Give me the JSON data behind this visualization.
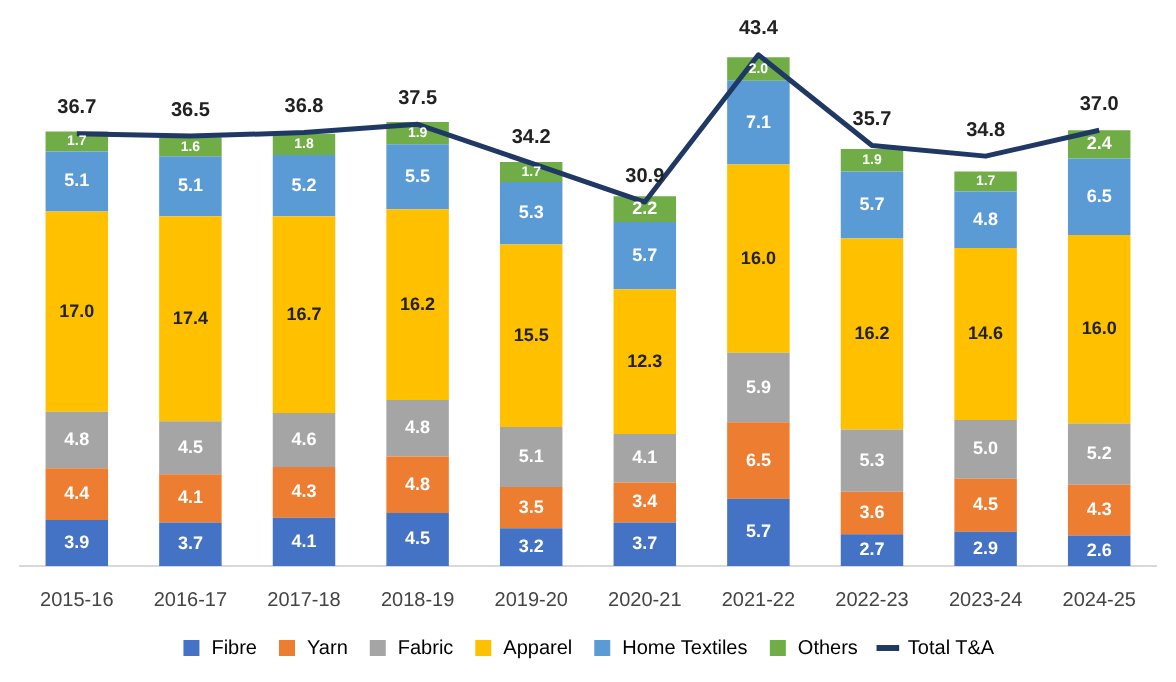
{
  "chart_data": {
    "type": "bar",
    "stacked": true,
    "categories": [
      "2015-16",
      "2016-17",
      "2017-18",
      "2018-19",
      "2019-20",
      "2020-21",
      "2021-22",
      "2022-23",
      "2023-24",
      "2024-25"
    ],
    "series": [
      {
        "name": "Fibre",
        "color": "#4472c4",
        "values": [
          3.9,
          3.7,
          4.1,
          4.5,
          3.2,
          3.7,
          5.7,
          2.7,
          2.9,
          2.6
        ],
        "value_labels": [
          "3.9",
          "3.7",
          "4.1",
          "4.5",
          "3.2",
          "3.7",
          "5.7",
          "2.7",
          "2.9",
          "2.6"
        ]
      },
      {
        "name": "Yarn",
        "color": "#ed7d31",
        "values": [
          4.4,
          4.1,
          4.3,
          4.8,
          3.5,
          3.4,
          6.5,
          3.6,
          4.5,
          4.3
        ],
        "value_labels": [
          "4.4",
          "4.1",
          "4.3",
          "4.8",
          "3.5",
          "3.4",
          "6.5",
          "3.6",
          "4.5",
          "4.3"
        ]
      },
      {
        "name": "Fabric",
        "color": "#a5a5a5",
        "values": [
          4.8,
          4.5,
          4.6,
          4.8,
          5.1,
          4.1,
          5.9,
          5.3,
          5.0,
          5.2
        ],
        "value_labels": [
          "4.8",
          "4.5",
          "4.6",
          "4.8",
          "5.1",
          "4.1",
          "5.9",
          "5.3",
          "5.0",
          "5.2"
        ]
      },
      {
        "name": "Apparel",
        "color": "#ffc000",
        "values": [
          17.0,
          17.4,
          16.7,
          16.2,
          15.5,
          12.3,
          16.0,
          16.2,
          14.6,
          16.0
        ],
        "value_labels": [
          "17.0",
          "17.4",
          "16.7",
          "16.2",
          "15.5",
          "12.3",
          "16.0",
          "16.2",
          "14.6",
          "16.0"
        ]
      },
      {
        "name": "Home Textiles",
        "color": "#5b9bd5",
        "values": [
          5.1,
          5.1,
          5.2,
          5.5,
          5.3,
          5.7,
          7.1,
          5.7,
          4.8,
          6.5
        ],
        "value_labels": [
          "5.1",
          "5.1",
          "5.2",
          "5.5",
          "5.3",
          "5.7",
          "7.1",
          "5.7",
          "4.8",
          "6.5"
        ]
      },
      {
        "name": "Others",
        "color": "#70ad47",
        "values": [
          1.7,
          1.6,
          1.8,
          1.9,
          1.7,
          2.2,
          2.0,
          1.9,
          1.7,
          2.4
        ],
        "value_labels": [
          "1.7",
          "1.6",
          "1.8",
          "1.9",
          "1.7",
          "2.2",
          "2.0",
          "1.9",
          "1.7",
          "2.4"
        ]
      },
      {
        "name": "Total T&A",
        "type": "line",
        "color": "#203864",
        "marker": "none",
        "values": [
          36.7,
          36.5,
          36.8,
          37.5,
          34.2,
          30.9,
          43.4,
          35.7,
          34.8,
          37.0
        ],
        "value_labels": [
          "36.7",
          "36.5",
          "36.8",
          "37.5",
          "34.2",
          "30.9",
          "43.4",
          "35.7",
          "34.8",
          "37.0"
        ]
      }
    ],
    "legend": "bottom",
    "grid": false,
    "tick_labels": "x"
  }
}
